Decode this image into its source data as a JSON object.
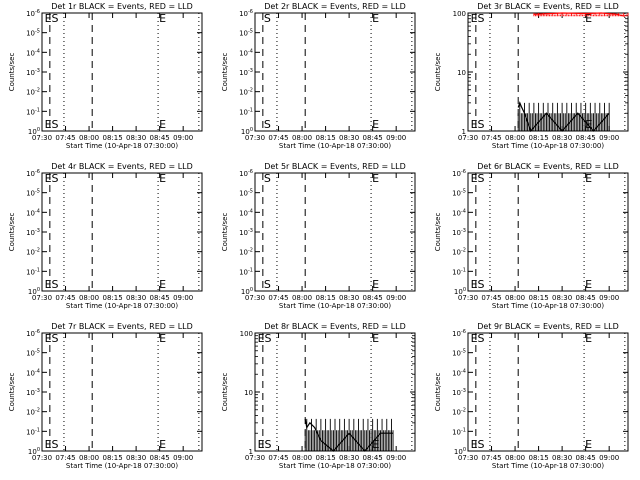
{
  "figure": {
    "common_xlabel": "Start Time (10-Apr-18 07:30:00)",
    "common_ylabel": "Counts/sec",
    "xticks": [
      "07:30",
      "07:45",
      "08:00",
      "08:15",
      "08:30",
      "08:45",
      "09:00"
    ],
    "line_colors": {
      "events": "#000000",
      "lld": "#ff0000"
    }
  },
  "chart_data": [
    {
      "type": "line",
      "title": "Det 1r BLACK = Events, RED = LLD",
      "xlabel": "Start Time (10-Apr-18 07:30:00)",
      "ylabel": "Counts/sec",
      "y_scale": "log",
      "x_range": [
        "07:30",
        "09:12"
      ],
      "yticks": [
        "10^0",
        "10^-1",
        "10^-2",
        "10^-3",
        "10^-4",
        "10^-5",
        "10^-6"
      ],
      "ylim": [
        1e-06,
        1
      ],
      "markers": {
        "dashed": [
          "07:35",
          "08:02"
        ],
        "dotted": [
          "07:44",
          "08:44",
          "09:10"
        ]
      },
      "annotations": [
        {
          "text": "ES",
          "x": "07:31"
        },
        {
          "text": "E",
          "x": "08:44"
        }
      ],
      "series": []
    },
    {
      "type": "line",
      "title": "Det 2r BLACK = Events, RED = LLD",
      "xlabel": "Start Time (10-Apr-18 07:30:00)",
      "ylabel": "Counts/sec",
      "y_scale": "log",
      "x_range": [
        "07:30",
        "09:12"
      ],
      "yticks": [
        "10^0",
        "10^-1",
        "10^-2",
        "10^-3",
        "10^-4",
        "10^-5",
        "10^-6"
      ],
      "ylim": [
        1e-06,
        1
      ],
      "markers": {
        "dashed": [
          "07:35",
          "08:02"
        ],
        "dotted": [
          "07:44",
          "08:44",
          "09:10"
        ]
      },
      "annotations": [
        {
          "text": "S",
          "x": "07:35"
        },
        {
          "text": "E",
          "x": "08:44"
        }
      ],
      "series": []
    },
    {
      "type": "line",
      "title": "Det 3r BLACK = Events, RED = LLD",
      "xlabel": "Start Time (10-Apr-18 07:30:00)",
      "ylabel": "Counts/sec",
      "y_scale": "log",
      "x_range": [
        "07:30",
        "09:12"
      ],
      "yticks": [
        "100",
        "10",
        "1"
      ],
      "ylim": [
        1,
        100
      ],
      "markers": {
        "dashed": [
          "07:35",
          "08:02"
        ],
        "dotted": [
          "07:44",
          "08:44",
          "09:10"
        ]
      },
      "annotations": [
        {
          "text": "ES",
          "x": "07:31"
        },
        {
          "text": "E",
          "x": "08:44"
        }
      ],
      "series": [
        {
          "color": "#000000",
          "segment": [
            "08:02",
            "09:00"
          ],
          "x": [
            "08:02",
            "08:03",
            "08:04",
            "08:06",
            "08:10",
            "08:20",
            "08:30",
            "08:40",
            "08:50",
            "09:00"
          ],
          "y": [
            2.5,
            3,
            2.6,
            2,
            1,
            2,
            1,
            2,
            1,
            2
          ]
        },
        {
          "color": "#ff0000",
          "segment": [
            "08:12",
            "09:12"
          ],
          "x": [
            "08:12",
            "08:30",
            "08:45",
            "08:55",
            "09:05",
            "09:10"
          ],
          "y": [
            95,
            100,
            98,
            100,
            95,
            88
          ]
        }
      ]
    },
    {
      "type": "line",
      "title": "Det 4r BLACK = Events, RED = LLD",
      "xlabel": "Start Time (10-Apr-18 07:30:00)",
      "ylabel": "Counts/sec",
      "y_scale": "log",
      "x_range": [
        "07:30",
        "09:12"
      ],
      "yticks": [
        "10^0",
        "10^-1",
        "10^-2",
        "10^-3",
        "10^-4",
        "10^-5",
        "10^-6"
      ],
      "ylim": [
        1e-06,
        1
      ],
      "markers": {
        "dashed": [
          "07:35",
          "08:02"
        ],
        "dotted": [
          "07:44",
          "08:44",
          "09:10"
        ]
      },
      "annotations": [
        {
          "text": "ES",
          "x": "07:31"
        },
        {
          "text": "E",
          "x": "08:44"
        }
      ],
      "series": []
    },
    {
      "type": "line",
      "title": "Det 5r BLACK = Events, RED = LLD",
      "xlabel": "Start Time (10-Apr-18 07:30:00)",
      "ylabel": "Counts/sec",
      "y_scale": "log",
      "x_range": [
        "07:30",
        "09:12"
      ],
      "yticks": [
        "10^0",
        "10^-1",
        "10^-2",
        "10^-3",
        "10^-4",
        "10^-5",
        "10^-6"
      ],
      "ylim": [
        1e-06,
        1
      ],
      "markers": {
        "dashed": [
          "07:35",
          "08:02"
        ],
        "dotted": [
          "07:44",
          "08:44",
          "09:10"
        ]
      },
      "annotations": [
        {
          "text": "S",
          "x": "07:35"
        },
        {
          "text": "E",
          "x": "08:44"
        }
      ],
      "series": []
    },
    {
      "type": "line",
      "title": "Det 6r BLACK = Events, RED = LLD",
      "xlabel": "Start Time (10-Apr-18 07:30:00)",
      "ylabel": "Counts/sec",
      "y_scale": "log",
      "x_range": [
        "07:30",
        "09:12"
      ],
      "yticks": [
        "10^0",
        "10^-1",
        "10^-2",
        "10^-3",
        "10^-4",
        "10^-5",
        "10^-6"
      ],
      "ylim": [
        1e-06,
        1
      ],
      "markers": {
        "dashed": [
          "07:35",
          "08:02"
        ],
        "dotted": [
          "07:44",
          "08:44",
          "09:10"
        ]
      },
      "annotations": [
        {
          "text": "ES",
          "x": "07:31"
        },
        {
          "text": "E",
          "x": "08:44"
        }
      ],
      "series": []
    },
    {
      "type": "line",
      "title": "Det 7r BLACK = Events, RED = LLD",
      "xlabel": "Start Time (10-Apr-18 07:30:00)",
      "ylabel": "Counts/sec",
      "y_scale": "log",
      "x_range": [
        "07:30",
        "09:12"
      ],
      "yticks": [
        "10^0",
        "10^-1",
        "10^-2",
        "10^-3",
        "10^-4",
        "10^-5",
        "10^-6"
      ],
      "ylim": [
        1e-06,
        1
      ],
      "markers": {
        "dashed": [
          "07:35",
          "08:02"
        ],
        "dotted": [
          "07:44",
          "08:44",
          "09:10"
        ]
      },
      "annotations": [
        {
          "text": "ES",
          "x": "07:31"
        },
        {
          "text": "E",
          "x": "08:44"
        }
      ],
      "series": []
    },
    {
      "type": "line",
      "title": "Det 8r BLACK = Events, RED = LLD",
      "xlabel": "Start Time (10-Apr-18 07:30:00)",
      "ylabel": "Counts/sec",
      "y_scale": "log",
      "x_range": [
        "07:30",
        "09:12"
      ],
      "yticks": [
        "100",
        "10",
        "1"
      ],
      "ylim": [
        1,
        100
      ],
      "markers": {
        "dashed": [
          "07:35",
          "08:02"
        ],
        "dotted": [
          "07:44",
          "08:44",
          "09:10"
        ]
      },
      "annotations": [
        {
          "text": "ES",
          "x": "07:31"
        },
        {
          "text": "E",
          "x": "08:44"
        }
      ],
      "series": [
        {
          "color": "#000000",
          "segment": [
            "08:02",
            "08:58"
          ],
          "x": [
            "08:02",
            "08:03",
            "08:05",
            "08:08",
            "08:12",
            "08:20",
            "08:30",
            "08:40",
            "08:50",
            "08:58"
          ],
          "y": [
            3.5,
            2.5,
            3,
            2.5,
            1.5,
            1,
            2,
            1,
            2,
            2
          ]
        }
      ]
    },
    {
      "type": "line",
      "title": "Det 9r BLACK = Events, RED = LLD",
      "xlabel": "Start Time (10-Apr-18 07:30:00)",
      "ylabel": "Counts/sec",
      "y_scale": "log",
      "x_range": [
        "07:30",
        "09:12"
      ],
      "yticks": [
        "10^0",
        "10^-1",
        "10^-2",
        "10^-3",
        "10^-4",
        "10^-5",
        "10^-6"
      ],
      "ylim": [
        1e-06,
        1
      ],
      "markers": {
        "dashed": [
          "07:35",
          "08:02"
        ],
        "dotted": [
          "07:44",
          "08:44",
          "09:10"
        ]
      },
      "annotations": [
        {
          "text": "ES",
          "x": "07:31"
        },
        {
          "text": "E",
          "x": "08:44"
        }
      ],
      "series": []
    }
  ]
}
